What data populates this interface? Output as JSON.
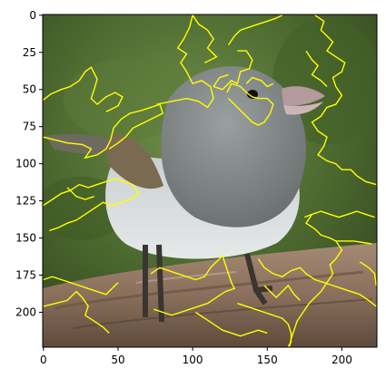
{
  "chart_data": {
    "type": "image",
    "title": "",
    "xlabel": "",
    "ylabel": "",
    "image_width": 224,
    "image_height": 224,
    "xlim": [
      -0.5,
      223.5
    ],
    "ylim": [
      223.5,
      -0.5
    ],
    "x_ticks": [
      0,
      50,
      100,
      150,
      200
    ],
    "y_ticks": [
      0,
      25,
      50,
      75,
      100,
      125,
      150,
      175,
      200
    ],
    "overlay": {
      "type": "segment-boundary-contours",
      "color": "#ffff00"
    },
    "image_content": "bird on a weathered log, green background",
    "contours": [
      [
        [
          0,
          57
        ],
        [
          5,
          53
        ],
        [
          12,
          50
        ],
        [
          18,
          48
        ],
        [
          24,
          44
        ],
        [
          28,
          38
        ],
        [
          32,
          35
        ],
        [
          36,
          43
        ],
        [
          34,
          50
        ],
        [
          32,
          56
        ],
        [
          36,
          60
        ],
        [
          42,
          55
        ],
        [
          48,
          52
        ],
        [
          53,
          55
        ],
        [
          50,
          61
        ],
        [
          42,
          65
        ]
      ],
      [
        [
          0,
          82
        ],
        [
          8,
          84
        ],
        [
          16,
          86
        ],
        [
          26,
          87
        ],
        [
          32,
          90
        ],
        [
          28,
          96
        ],
        [
          36,
          94
        ],
        [
          42,
          90
        ],
        [
          45,
          84
        ],
        [
          47,
          76
        ],
        [
          52,
          70
        ],
        [
          58,
          66
        ],
        [
          66,
          64
        ],
        [
          72,
          62
        ],
        [
          78,
          60
        ],
        [
          80,
          66
        ],
        [
          72,
          70
        ],
        [
          66,
          73
        ],
        [
          60,
          76
        ],
        [
          55,
          82
        ],
        [
          50,
          86
        ],
        [
          44,
          90
        ]
      ],
      [
        [
          76,
          60
        ],
        [
          86,
          58
        ],
        [
          96,
          56
        ],
        [
          104,
          58
        ],
        [
          110,
          62
        ],
        [
          114,
          56
        ],
        [
          112,
          48
        ],
        [
          106,
          44
        ],
        [
          100,
          46
        ],
        [
          96,
          38
        ],
        [
          92,
          32
        ],
        [
          96,
          26
        ],
        [
          90,
          22
        ],
        [
          94,
          16
        ],
        [
          98,
          8
        ],
        [
          100,
          0
        ]
      ],
      [
        [
          100,
          0
        ],
        [
          104,
          6
        ],
        [
          110,
          10
        ],
        [
          114,
          16
        ],
        [
          110,
          22
        ],
        [
          116,
          28
        ],
        [
          108,
          32
        ]
      ],
      [
        [
          0,
          128
        ],
        [
          6,
          124
        ],
        [
          12,
          120
        ],
        [
          18,
          118
        ],
        [
          24,
          114
        ],
        [
          30,
          116
        ],
        [
          36,
          114
        ],
        [
          42,
          112
        ],
        [
          48,
          110
        ],
        [
          54,
          112
        ],
        [
          60,
          114
        ],
        [
          64,
          120
        ],
        [
          58,
          124
        ],
        [
          52,
          126
        ],
        [
          46,
          128
        ],
        [
          40,
          126
        ],
        [
          34,
          130
        ],
        [
          28,
          134
        ],
        [
          22,
          138
        ],
        [
          16,
          140
        ],
        [
          10,
          143
        ],
        [
          4,
          145
        ]
      ],
      [
        [
          16,
          116
        ],
        [
          22,
          122
        ],
        [
          28,
          124
        ],
        [
          34,
          122
        ]
      ],
      [
        [
          124,
          20
        ],
        [
          128,
          14
        ],
        [
          132,
          10
        ],
        [
          138,
          8
        ],
        [
          144,
          6
        ],
        [
          150,
          4
        ],
        [
          156,
          2
        ],
        [
          160,
          0
        ]
      ],
      [
        [
          114,
          48
        ],
        [
          120,
          50
        ],
        [
          126,
          44
        ],
        [
          130,
          46
        ],
        [
          132,
          38
        ],
        [
          138,
          36
        ],
        [
          140,
          30
        ],
        [
          136,
          24
        ],
        [
          130,
          24
        ]
      ],
      [
        [
          114,
          48
        ],
        [
          118,
          42
        ],
        [
          124,
          40
        ]
      ],
      [
        [
          123,
          52
        ],
        [
          126,
          46
        ],
        [
          132,
          48
        ],
        [
          136,
          52
        ],
        [
          140,
          55
        ],
        [
          144,
          56
        ],
        [
          150,
          56
        ],
        [
          154,
          60
        ],
        [
          152,
          66
        ],
        [
          148,
          72
        ],
        [
          144,
          74
        ],
        [
          140,
          72
        ],
        [
          136,
          68
        ],
        [
          132,
          64
        ],
        [
          128,
          60
        ],
        [
          124,
          56
        ]
      ],
      [
        [
          136,
          46
        ],
        [
          140,
          42
        ],
        [
          146,
          44
        ],
        [
          150,
          48
        ],
        [
          154,
          46
        ]
      ],
      [
        [
          182,
          0
        ],
        [
          188,
          4
        ],
        [
          186,
          10
        ],
        [
          190,
          14
        ],
        [
          194,
          18
        ],
        [
          190,
          24
        ],
        [
          196,
          28
        ],
        [
          202,
          32
        ],
        [
          200,
          38
        ],
        [
          194,
          42
        ],
        [
          196,
          48
        ],
        [
          200,
          54
        ],
        [
          196,
          60
        ],
        [
          190,
          62
        ],
        [
          186,
          68
        ],
        [
          180,
          72
        ],
        [
          184,
          78
        ],
        [
          190,
          82
        ],
        [
          188,
          88
        ],
        [
          184,
          94
        ],
        [
          190,
          98
        ],
        [
          196,
          100
        ],
        [
          200,
          104
        ],
        [
          206,
          104
        ],
        [
          210,
          108
        ],
        [
          216,
          112
        ],
        [
          223,
          114
        ]
      ],
      [
        [
          176,
          24
        ],
        [
          180,
          30
        ],
        [
          184,
          34
        ],
        [
          180,
          40
        ],
        [
          186,
          44
        ],
        [
          190,
          48
        ]
      ],
      [
        [
          175,
          136
        ],
        [
          180,
          134
        ],
        [
          186,
          132
        ],
        [
          192,
          134
        ],
        [
          198,
          136
        ],
        [
          204,
          134
        ],
        [
          210,
          132
        ],
        [
          216,
          134
        ],
        [
          222,
          136
        ]
      ],
      [
        [
          180,
          134
        ],
        [
          176,
          140
        ],
        [
          182,
          144
        ],
        [
          186,
          148
        ],
        [
          192,
          150
        ],
        [
          196,
          152
        ],
        [
          202,
          152
        ],
        [
          208,
          152
        ],
        [
          214,
          153
        ],
        [
          220,
          154
        ]
      ],
      [
        [
          196,
          152
        ],
        [
          200,
          158
        ],
        [
          196,
          164
        ],
        [
          192,
          168
        ],
        [
          194,
          174
        ],
        [
          190,
          180
        ],
        [
          186,
          186
        ],
        [
          182,
          190
        ],
        [
          178,
          194
        ],
        [
          174,
          200
        ],
        [
          170,
          206
        ],
        [
          168,
          212
        ],
        [
          166,
          218
        ],
        [
          165,
          223
        ]
      ],
      [
        [
          144,
          164
        ],
        [
          148,
          170
        ],
        [
          154,
          174
        ],
        [
          160,
          176
        ],
        [
          166,
          172
        ],
        [
          172,
          170
        ],
        [
          176,
          174
        ],
        [
          182,
          178
        ],
        [
          188,
          180
        ],
        [
          194,
          182
        ],
        [
          200,
          184
        ],
        [
          206,
          186
        ],
        [
          212,
          188
        ],
        [
          218,
          192
        ],
        [
          223,
          196
        ]
      ],
      [
        [
          212,
          166
        ],
        [
          218,
          170
        ],
        [
          222,
          174
        ],
        [
          223,
          182
        ]
      ],
      [
        [
          0,
          178
        ],
        [
          6,
          176
        ],
        [
          12,
          178
        ],
        [
          18,
          180
        ],
        [
          24,
          182
        ],
        [
          30,
          184
        ],
        [
          36,
          186
        ],
        [
          42,
          188
        ],
        [
          46,
          184
        ],
        [
          50,
          180
        ]
      ],
      [
        [
          0,
          196
        ],
        [
          8,
          194
        ],
        [
          16,
          192
        ],
        [
          22,
          186
        ],
        [
          26,
          190
        ],
        [
          30,
          196
        ],
        [
          28,
          202
        ],
        [
          34,
          206
        ],
        [
          40,
          210
        ],
        [
          44,
          214
        ]
      ],
      [
        [
          72,
          174
        ],
        [
          78,
          170
        ],
        [
          84,
          172
        ],
        [
          90,
          174
        ],
        [
          96,
          176
        ],
        [
          102,
          178
        ],
        [
          108,
          176
        ],
        [
          112,
          170
        ],
        [
          116,
          166
        ],
        [
          120,
          162
        ],
        [
          122,
          168
        ],
        [
          124,
          174
        ],
        [
          126,
          180
        ],
        [
          128,
          184
        ],
        [
          122,
          186
        ],
        [
          116,
          190
        ],
        [
          110,
          194
        ],
        [
          104,
          196
        ],
        [
          98,
          198
        ],
        [
          92,
          200
        ],
        [
          86,
          202
        ],
        [
          80,
          200
        ],
        [
          74,
          198
        ]
      ],
      [
        [
          130,
          194
        ],
        [
          136,
          196
        ],
        [
          142,
          198
        ],
        [
          148,
          200
        ],
        [
          154,
          202
        ],
        [
          160,
          204
        ],
        [
          164,
          208
        ],
        [
          166,
          214
        ],
        [
          166,
          220
        ],
        [
          164,
          223
        ]
      ],
      [
        [
          102,
          200
        ],
        [
          108,
          204
        ],
        [
          114,
          208
        ],
        [
          120,
          212
        ],
        [
          126,
          214
        ],
        [
          132,
          216
        ],
        [
          138,
          214
        ],
        [
          144,
          212
        ],
        [
          150,
          214
        ]
      ],
      [
        [
          148,
          182
        ],
        [
          152,
          186
        ],
        [
          156,
          190
        ],
        [
          160,
          186
        ],
        [
          164,
          182
        ],
        [
          168,
          188
        ],
        [
          172,
          192
        ]
      ]
    ]
  }
}
